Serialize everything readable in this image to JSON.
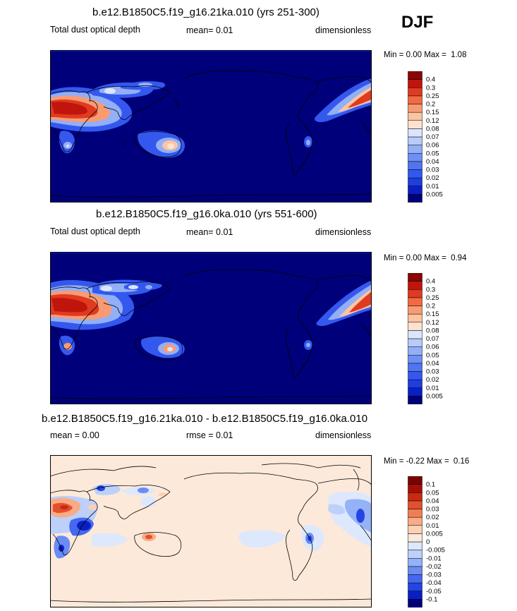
{
  "season": "DJF",
  "chart_data": [
    {
      "type": "heatmap",
      "title": "b.e12.B1850C5.f19_g16.21ka.010 (yrs 251-300)",
      "left_label": "Total dust optical depth",
      "center_label": "mean=  0.01",
      "right_label": "dimensionless",
      "min_label": "Min =",
      "min_value": "0.00",
      "max_label": "Max =",
      "max_value": "1.08",
      "colorbar_levels": [
        "0.005",
        "0.01",
        "0.02",
        "0.03",
        "0.04",
        "0.05",
        "0.06",
        "0.07",
        "0.08",
        "0.12",
        "0.15",
        "0.2",
        "0.25",
        "0.3",
        "0.4"
      ],
      "colorbar_colors": [
        "#00007a",
        "#0a1fc2",
        "#1d3ee0",
        "#3458ee",
        "#4f75f2",
        "#6e90f5",
        "#92aff7",
        "#b8cbfa",
        "#dbe6fd",
        "#fde3cf",
        "#fcc4a0",
        "#f99b72",
        "#f26a45",
        "#e03a20",
        "#c0150d",
        "#8a0505"
      ],
      "background_color": "#00007a"
    },
    {
      "type": "heatmap",
      "title": "b.e12.B1850C5.f19_g16.0ka.010 (yrs 551-600)",
      "left_label": "Total dust optical depth",
      "center_label": "mean=  0.01",
      "right_label": "dimensionless",
      "min_label": "Min =",
      "min_value": "0.00",
      "max_label": "Max =",
      "max_value": "0.94",
      "colorbar_levels": [
        "0.005",
        "0.01",
        "0.02",
        "0.03",
        "0.04",
        "0.05",
        "0.06",
        "0.07",
        "0.08",
        "0.12",
        "0.15",
        "0.2",
        "0.25",
        "0.3",
        "0.4"
      ],
      "colorbar_colors": [
        "#00007a",
        "#0a1fc2",
        "#1d3ee0",
        "#3458ee",
        "#4f75f2",
        "#6e90f5",
        "#92aff7",
        "#b8cbfa",
        "#dbe6fd",
        "#fde3cf",
        "#fcc4a0",
        "#f99b72",
        "#f26a45",
        "#e03a20",
        "#c0150d",
        "#8a0505"
      ],
      "background_color": "#00007a"
    },
    {
      "type": "heatmap",
      "title": "b.e12.B1850C5.f19_g16.21ka.010 - b.e12.B1850C5.f19_g16.0ka.010",
      "left_label": "mean =   0.00",
      "center_label": "rmse =   0.01",
      "right_label": "dimensionless",
      "min_label": "Min =",
      "min_value": "-0.22",
      "max_label": "Max =",
      "max_value": "0.16",
      "colorbar_levels": [
        "-0.1",
        "-0.05",
        "-0.04",
        "-0.03",
        "-0.02",
        "-0.01",
        "-0.005",
        "0",
        "0.005",
        "0.01",
        "0.02",
        "0.03",
        "0.04",
        "0.05",
        "0.1"
      ],
      "colorbar_colors": [
        "#00007a",
        "#0a1fc2",
        "#2444e4",
        "#4468ef",
        "#6a8cf4",
        "#94b2f7",
        "#bcd0fa",
        "#dde8fd",
        "#fde9da",
        "#fcd0b4",
        "#f9ab86",
        "#f27d55",
        "#e2502d",
        "#c82a12",
        "#a30e06",
        "#7a0202"
      ],
      "background_color": "#fde9da"
    }
  ]
}
